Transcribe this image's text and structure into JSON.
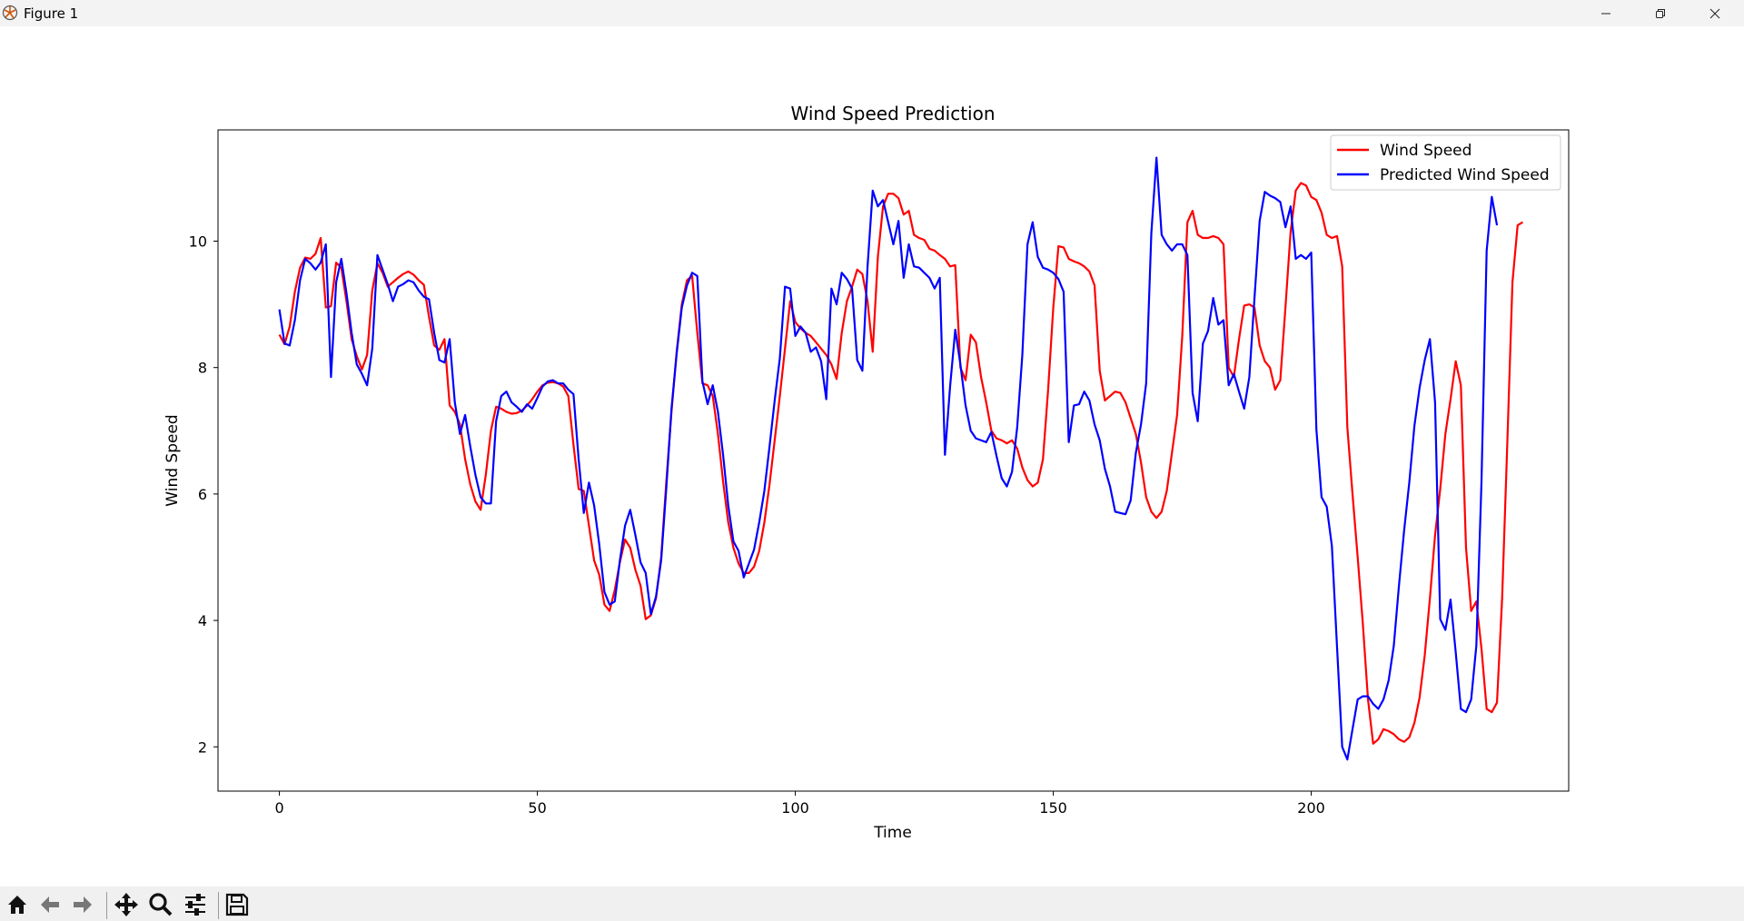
{
  "window": {
    "title": "Figure 1"
  },
  "toolbar": {
    "buttons": [
      "home-icon",
      "back-icon",
      "forward-icon",
      "pan-icon",
      "zoom-icon",
      "configure-icon",
      "save-icon"
    ]
  },
  "colors": {
    "wind": "#ff0000",
    "predicted": "#0000ff"
  },
  "chart_data": {
    "type": "line",
    "title": "Wind Speed Prediction",
    "xlabel": "Time",
    "ylabel": "Wind Speed",
    "xlim": [
      -11.9,
      249.9
    ],
    "ylim": [
      1.3,
      11.76
    ],
    "xticks": [
      0,
      50,
      100,
      150,
      200
    ],
    "yticks": [
      2,
      4,
      6,
      8,
      10
    ],
    "grid": false,
    "legend_position": "top-right",
    "x_start": 0,
    "series": [
      {
        "name": "Wind Speed",
        "color": "#ff0000",
        "values": [
          8.52,
          8.37,
          8.65,
          9.2,
          9.58,
          9.74,
          9.72,
          9.8,
          10.05,
          8.95,
          8.97,
          9.66,
          9.58,
          9.05,
          8.45,
          8.18,
          7.97,
          8.2,
          9.22,
          9.65,
          9.5,
          9.28,
          9.35,
          9.42,
          9.48,
          9.52,
          9.47,
          9.38,
          9.31,
          8.8,
          8.35,
          8.28,
          8.45,
          7.4,
          7.3,
          7.1,
          6.55,
          6.15,
          5.88,
          5.75,
          6.3,
          7.0,
          7.38,
          7.35,
          7.3,
          7.27,
          7.28,
          7.32,
          7.4,
          7.5,
          7.62,
          7.72,
          7.76,
          7.77,
          7.75,
          7.7,
          7.55,
          6.78,
          6.08,
          6.05,
          5.5,
          4.95,
          4.72,
          4.25,
          4.15,
          4.48,
          4.92,
          5.28,
          5.15,
          4.8,
          4.55,
          4.02,
          4.08,
          4.35,
          5.0,
          6.2,
          7.3,
          8.25,
          9.0,
          9.38,
          9.45,
          8.55,
          7.75,
          7.72,
          7.55,
          6.95,
          6.2,
          5.55,
          5.15,
          4.9,
          4.75,
          4.75,
          4.85,
          5.1,
          5.55,
          6.15,
          6.85,
          7.55,
          8.3,
          9.05,
          8.72,
          8.62,
          8.55,
          8.5,
          8.4,
          8.3,
          8.2,
          8.05,
          7.82,
          8.55,
          9.05,
          9.28,
          9.55,
          9.48,
          9.05,
          8.25,
          9.75,
          10.55,
          10.75,
          10.75,
          10.68,
          10.42,
          10.48,
          10.1,
          10.05,
          10.02,
          9.88,
          9.85,
          9.78,
          9.72,
          9.6,
          9.62,
          8.0,
          7.8,
          8.52,
          8.4,
          7.85,
          7.45,
          7.0,
          6.88,
          6.85,
          6.8,
          6.85,
          6.72,
          6.42,
          6.22,
          6.12,
          6.18,
          6.55,
          7.65,
          8.95,
          9.92,
          9.9,
          9.72,
          9.68,
          9.65,
          9.6,
          9.52,
          9.3,
          7.95,
          7.48,
          7.55,
          7.62,
          7.6,
          7.45,
          7.2,
          6.95,
          6.5,
          5.95,
          5.72,
          5.62,
          5.72,
          6.05,
          6.65,
          7.25,
          8.5,
          10.3,
          10.48,
          10.1,
          10.05,
          10.05,
          10.08,
          10.05,
          9.95,
          8.0,
          7.85,
          8.45,
          8.98,
          9.0,
          8.95,
          8.35,
          8.1,
          8.0,
          7.65,
          7.8,
          8.95,
          10.15,
          10.8,
          10.92,
          10.88,
          10.7,
          10.65,
          10.45,
          10.1,
          10.05,
          10.08,
          9.6,
          7.05,
          6.0,
          5.0,
          3.95,
          2.75,
          2.05,
          2.12,
          2.28,
          2.25,
          2.2,
          2.12,
          2.08,
          2.15,
          2.38,
          2.78,
          3.45,
          4.35,
          5.35,
          6.08,
          6.95,
          7.5,
          8.1,
          7.72,
          5.15,
          4.15,
          4.3,
          3.55,
          2.6,
          2.55,
          2.7,
          4.35,
          6.8,
          9.35,
          10.25,
          10.3
        ]
      },
      {
        "name": "Predicted Wind Speed",
        "color": "#0000ff",
        "values": [
          8.92,
          8.38,
          8.35,
          8.75,
          9.38,
          9.72,
          9.65,
          9.55,
          9.66,
          9.95,
          7.85,
          9.35,
          9.72,
          9.18,
          8.55,
          8.05,
          7.9,
          7.72,
          8.3,
          9.78,
          9.55,
          9.32,
          9.05,
          9.28,
          9.32,
          9.38,
          9.35,
          9.22,
          9.12,
          9.08,
          8.55,
          8.12,
          8.08,
          8.45,
          7.45,
          6.95,
          7.25,
          6.75,
          6.3,
          5.95,
          5.85,
          5.85,
          7.15,
          7.55,
          7.62,
          7.45,
          7.38,
          7.3,
          7.42,
          7.35,
          7.52,
          7.7,
          7.78,
          7.8,
          7.75,
          7.75,
          7.65,
          7.58,
          6.55,
          5.7,
          6.18,
          5.82,
          5.2,
          4.45,
          4.25,
          4.3,
          4.95,
          5.5,
          5.75,
          5.35,
          4.92,
          4.75,
          4.1,
          4.38,
          4.95,
          6.1,
          7.35,
          8.22,
          8.95,
          9.3,
          9.5,
          9.45,
          7.78,
          7.42,
          7.72,
          7.3,
          6.62,
          5.82,
          5.25,
          5.1,
          4.68,
          4.9,
          5.12,
          5.55,
          6.05,
          6.75,
          7.48,
          8.15,
          9.28,
          9.25,
          8.5,
          8.65,
          8.55,
          8.25,
          8.32,
          8.1,
          7.5,
          9.25,
          9.0,
          9.5,
          9.4,
          9.25,
          8.12,
          7.95,
          9.6,
          10.8,
          10.55,
          10.65,
          10.3,
          9.95,
          10.32,
          9.42,
          9.95,
          9.6,
          9.58,
          9.5,
          9.42,
          9.25,
          9.42,
          6.62,
          7.7,
          8.6,
          8.05,
          7.4,
          7.0,
          6.88,
          6.85,
          6.82,
          6.98,
          6.6,
          6.25,
          6.12,
          6.35,
          7.05,
          8.2,
          9.95,
          10.3,
          9.75,
          9.58,
          9.55,
          9.5,
          9.4,
          9.2,
          6.82,
          7.4,
          7.42,
          7.62,
          7.48,
          7.1,
          6.85,
          6.4,
          6.12,
          5.72,
          5.7,
          5.68,
          5.9,
          6.65,
          7.1,
          7.75,
          10.12,
          11.32,
          10.1,
          9.95,
          9.85,
          9.95,
          9.95,
          9.78,
          7.6,
          7.15,
          8.38,
          8.58,
          9.1,
          8.68,
          8.75,
          7.72,
          7.9,
          7.62,
          7.35,
          7.85,
          9.1,
          10.32,
          10.78,
          10.72,
          10.68,
          10.62,
          10.22,
          10.55,
          9.72,
          9.78,
          9.72,
          9.82,
          7.02,
          5.95,
          5.8,
          5.18,
          3.58,
          2.0,
          1.8,
          2.28,
          2.75,
          2.8,
          2.8,
          2.68,
          2.6,
          2.75,
          3.05,
          3.6,
          4.55,
          5.42,
          6.18,
          7.08,
          7.68,
          8.12,
          8.45,
          7.45,
          4.02,
          3.85,
          4.33,
          3.5,
          2.6,
          2.55,
          2.75,
          3.6,
          6.2,
          9.85,
          10.7,
          10.25
        ]
      }
    ]
  }
}
